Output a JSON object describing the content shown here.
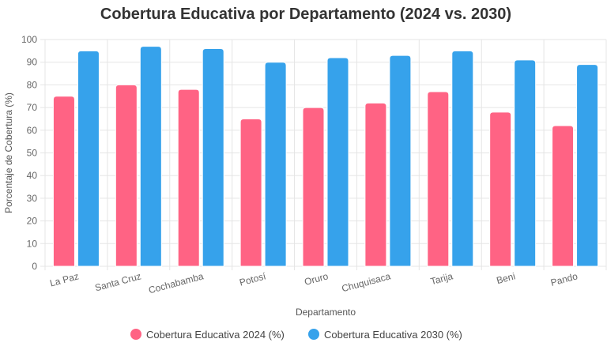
{
  "chart_data": {
    "type": "bar",
    "title": "Cobertura Educativa por Departamento (2024 vs. 2030)",
    "xlabel": "Departamento",
    "ylabel": "Porcentaje de Cobertura (%)",
    "ylim": [
      0,
      100
    ],
    "yticks": [
      0,
      10,
      20,
      30,
      40,
      50,
      60,
      70,
      80,
      90,
      100
    ],
    "grid": true,
    "legend_position": "bottom",
    "categories": [
      "La Paz",
      "Santa Cruz",
      "Cochabamba",
      "Potosí",
      "Oruro",
      "Chuquisaca",
      "Tarija",
      "Beni",
      "Pando"
    ],
    "series": [
      {
        "name": "Cobertura Educativa 2024 (%)",
        "color": "#ff6384",
        "values": [
          75,
          80,
          78,
          65,
          70,
          72,
          77,
          68,
          62
        ]
      },
      {
        "name": "Cobertura Educativa 2030 (%)",
        "color": "#36a2eb",
        "values": [
          95,
          97,
          96,
          90,
          92,
          93,
          95,
          91,
          89
        ]
      }
    ]
  }
}
